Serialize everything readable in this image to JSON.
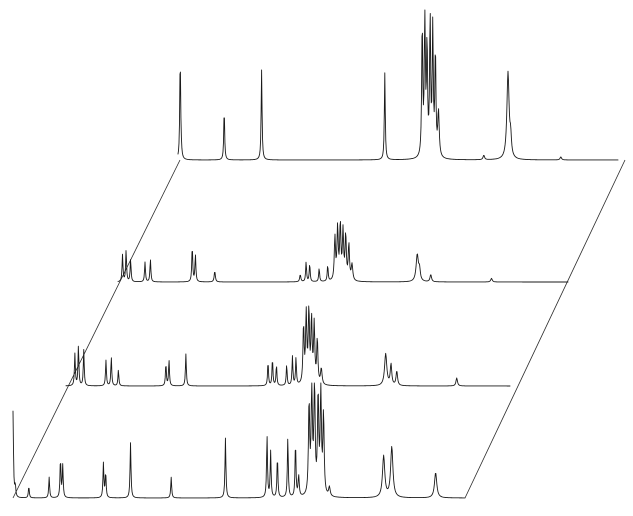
{
  "chart_data": {
    "type": "line",
    "layout": "stacked-spectra",
    "axes_visible": false,
    "grid": false,
    "legend": "none",
    "x_range": [
      0,
      1
    ],
    "ink_color": "#1a1a1a",
    "series": [
      {
        "name": "",
        "tag": "",
        "peaks": [
          {
            "x": 0.005,
            "h": 0.68,
            "w": 0.0012
          },
          {
            "x": 0.007,
            "h": 0.05,
            "w": 0.0015
          },
          {
            "x": 0.105,
            "h": 0.34,
            "w": 0.0012
          },
          {
            "x": 0.19,
            "h": 0.6,
            "w": 0.0012
          },
          {
            "x": 0.47,
            "h": 0.58,
            "w": 0.0012
          },
          {
            "x": 0.555,
            "h": 0.88,
            "w": 0.0014
          },
          {
            "x": 0.561,
            "h": 0.97,
            "w": 0.0014
          },
          {
            "x": 0.566,
            "h": 0.74,
            "w": 0.0014
          },
          {
            "x": 0.573,
            "h": 0.92,
            "w": 0.0014
          },
          {
            "x": 0.579,
            "h": 0.85,
            "w": 0.0014
          },
          {
            "x": 0.585,
            "h": 0.7,
            "w": 0.0014
          },
          {
            "x": 0.592,
            "h": 0.3,
            "w": 0.002
          },
          {
            "x": 0.695,
            "h": 0.03,
            "w": 0.002
          },
          {
            "x": 0.75,
            "h": 0.58,
            "w": 0.003
          },
          {
            "x": 0.756,
            "h": 0.12,
            "w": 0.002
          },
          {
            "x": 0.87,
            "h": 0.02,
            "w": 0.002
          }
        ]
      },
      {
        "name": "",
        "tag": "",
        "peaks": [
          {
            "x": 0.01,
            "h": 0.3,
            "w": 0.0012
          },
          {
            "x": 0.018,
            "h": 0.35,
            "w": 0.0012
          },
          {
            "x": 0.028,
            "h": 0.25,
            "w": 0.0012
          },
          {
            "x": 0.06,
            "h": 0.22,
            "w": 0.0012
          },
          {
            "x": 0.072,
            "h": 0.25,
            "w": 0.0012
          },
          {
            "x": 0.165,
            "h": 0.4,
            "w": 0.0012
          },
          {
            "x": 0.172,
            "h": 0.3,
            "w": 0.0012
          },
          {
            "x": 0.215,
            "h": 0.12,
            "w": 0.0015
          },
          {
            "x": 0.405,
            "h": 0.08,
            "w": 0.0015
          },
          {
            "x": 0.418,
            "h": 0.22,
            "w": 0.0012
          },
          {
            "x": 0.426,
            "h": 0.2,
            "w": 0.0012
          },
          {
            "x": 0.447,
            "h": 0.15,
            "w": 0.0012
          },
          {
            "x": 0.466,
            "h": 0.18,
            "w": 0.0012
          },
          {
            "x": 0.482,
            "h": 0.48,
            "w": 0.0016
          },
          {
            "x": 0.488,
            "h": 0.58,
            "w": 0.0016
          },
          {
            "x": 0.494,
            "h": 0.62,
            "w": 0.0016
          },
          {
            "x": 0.5,
            "h": 0.54,
            "w": 0.0016
          },
          {
            "x": 0.506,
            "h": 0.5,
            "w": 0.0016
          },
          {
            "x": 0.513,
            "h": 0.4,
            "w": 0.0016
          },
          {
            "x": 0.52,
            "h": 0.18,
            "w": 0.002
          },
          {
            "x": 0.665,
            "h": 0.3,
            "w": 0.003
          },
          {
            "x": 0.67,
            "h": 0.12,
            "w": 0.002
          },
          {
            "x": 0.695,
            "h": 0.08,
            "w": 0.002
          },
          {
            "x": 0.83,
            "h": 0.04,
            "w": 0.002
          }
        ]
      },
      {
        "name": "",
        "tag": "",
        "peaks": [
          {
            "x": 0.02,
            "h": 0.4,
            "w": 0.0012
          },
          {
            "x": 0.028,
            "h": 0.5,
            "w": 0.0012
          },
          {
            "x": 0.04,
            "h": 0.45,
            "w": 0.0012
          },
          {
            "x": 0.09,
            "h": 0.32,
            "w": 0.0012
          },
          {
            "x": 0.102,
            "h": 0.36,
            "w": 0.0012
          },
          {
            "x": 0.118,
            "h": 0.2,
            "w": 0.0012
          },
          {
            "x": 0.225,
            "h": 0.28,
            "w": 0.0012
          },
          {
            "x": 0.232,
            "h": 0.32,
            "w": 0.0012
          },
          {
            "x": 0.27,
            "h": 0.4,
            "w": 0.0012
          },
          {
            "x": 0.455,
            "h": 0.3,
            "w": 0.0012
          },
          {
            "x": 0.465,
            "h": 0.34,
            "w": 0.0012
          },
          {
            "x": 0.474,
            "h": 0.26,
            "w": 0.0012
          },
          {
            "x": 0.497,
            "h": 0.26,
            "w": 0.0012
          },
          {
            "x": 0.51,
            "h": 0.36,
            "w": 0.0012
          },
          {
            "x": 0.518,
            "h": 0.34,
            "w": 0.0012
          },
          {
            "x": 0.535,
            "h": 0.72,
            "w": 0.0016
          },
          {
            "x": 0.541,
            "h": 0.86,
            "w": 0.0016
          },
          {
            "x": 0.547,
            "h": 0.92,
            "w": 0.0016
          },
          {
            "x": 0.553,
            "h": 0.8,
            "w": 0.0016
          },
          {
            "x": 0.559,
            "h": 0.74,
            "w": 0.0016
          },
          {
            "x": 0.566,
            "h": 0.56,
            "w": 0.0016
          },
          {
            "x": 0.575,
            "h": 0.2,
            "w": 0.002
          },
          {
            "x": 0.72,
            "h": 0.4,
            "w": 0.003
          },
          {
            "x": 0.732,
            "h": 0.26,
            "w": 0.002
          },
          {
            "x": 0.745,
            "h": 0.18,
            "w": 0.002
          },
          {
            "x": 0.88,
            "h": 0.1,
            "w": 0.002
          }
        ]
      },
      {
        "name": "",
        "tag": "",
        "peaks": [
          {
            "x": 0.0,
            "h": 0.75,
            "w": 0.0012
          },
          {
            "x": 0.005,
            "h": 0.1,
            "w": 0.0012
          },
          {
            "x": 0.035,
            "h": 0.1,
            "w": 0.0012
          },
          {
            "x": 0.08,
            "h": 0.18,
            "w": 0.0012
          },
          {
            "x": 0.105,
            "h": 0.34,
            "w": 0.0012
          },
          {
            "x": 0.11,
            "h": 0.28,
            "w": 0.0012
          },
          {
            "x": 0.2,
            "h": 0.3,
            "w": 0.0012
          },
          {
            "x": 0.205,
            "h": 0.22,
            "w": 0.0012
          },
          {
            "x": 0.26,
            "h": 0.48,
            "w": 0.0012
          },
          {
            "x": 0.35,
            "h": 0.18,
            "w": 0.0012
          },
          {
            "x": 0.47,
            "h": 0.52,
            "w": 0.0012
          },
          {
            "x": 0.562,
            "h": 0.54,
            "w": 0.0012
          },
          {
            "x": 0.57,
            "h": 0.4,
            "w": 0.0012
          },
          {
            "x": 0.585,
            "h": 0.36,
            "w": 0.0012
          },
          {
            "x": 0.608,
            "h": 0.52,
            "w": 0.0012
          },
          {
            "x": 0.625,
            "h": 0.48,
            "w": 0.0012
          },
          {
            "x": 0.632,
            "h": 0.18,
            "w": 0.0015
          },
          {
            "x": 0.655,
            "h": 0.8,
            "w": 0.0016
          },
          {
            "x": 0.661,
            "h": 0.94,
            "w": 0.0016
          },
          {
            "x": 0.667,
            "h": 0.98,
            "w": 0.0016
          },
          {
            "x": 0.675,
            "h": 0.86,
            "w": 0.0016
          },
          {
            "x": 0.681,
            "h": 0.9,
            "w": 0.0016
          },
          {
            "x": 0.687,
            "h": 0.7,
            "w": 0.0016
          },
          {
            "x": 0.7,
            "h": 0.08,
            "w": 0.002
          },
          {
            "x": 0.82,
            "h": 0.36,
            "w": 0.003
          },
          {
            "x": 0.838,
            "h": 0.44,
            "w": 0.003
          },
          {
            "x": 0.935,
            "h": 0.22,
            "w": 0.003
          }
        ]
      }
    ]
  }
}
